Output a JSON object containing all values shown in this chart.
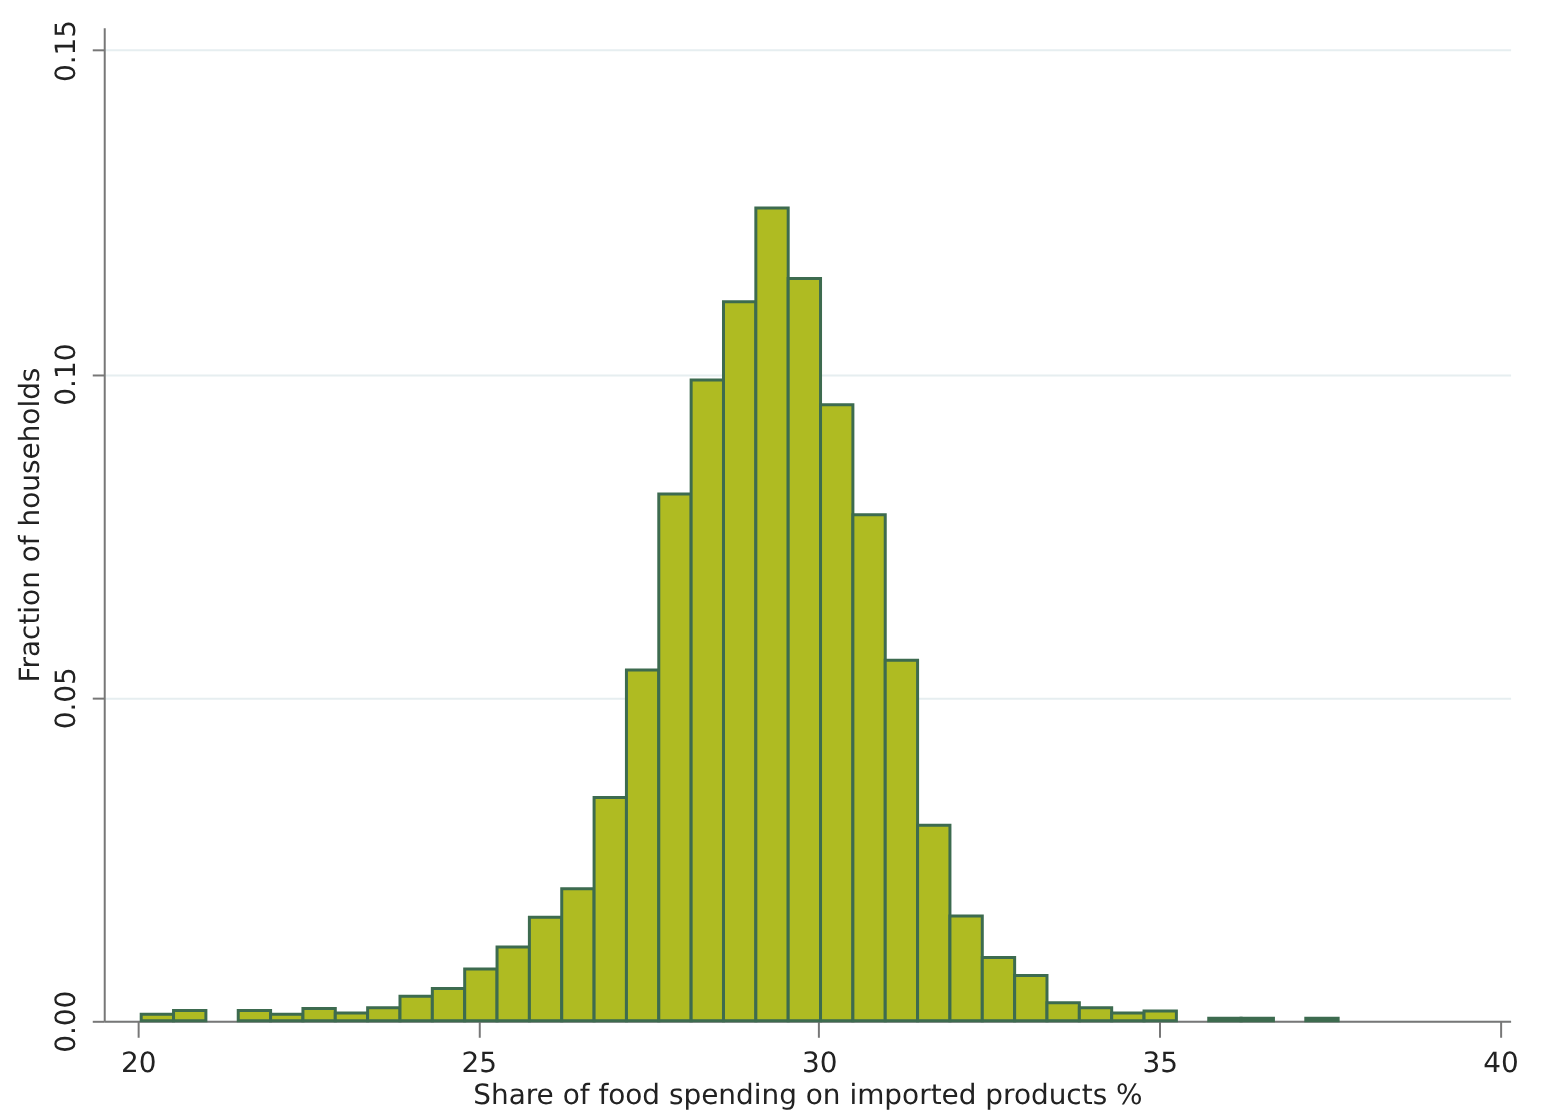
{
  "chart_data": {
    "type": "histogram",
    "xlabel": "Share of food spending on imported products %",
    "ylabel": "Fraction of households",
    "bins": [
      20.05,
      20.525,
      21.0,
      21.475,
      21.95,
      22.425,
      22.9,
      23.375,
      23.85,
      24.325,
      24.8,
      25.275,
      25.75,
      26.225,
      26.7,
      27.175,
      27.65,
      28.125,
      28.6,
      29.075,
      29.55,
      30.025,
      30.5,
      30.975,
      31.45,
      31.925,
      32.4,
      32.875,
      33.35,
      33.825,
      34.3,
      34.775,
      35.25,
      35.725,
      36.2,
      36.675,
      37.15,
      37.625
    ],
    "values": [
      0.001,
      0.0016,
      null,
      0.0016,
      0.001,
      0.0019,
      0.0012,
      0.002,
      0.0038,
      0.005,
      0.008,
      0.0114,
      0.016,
      0.0204,
      0.0345,
      0.0542,
      0.0814,
      0.099,
      0.1111,
      0.1256,
      0.1147,
      0.0952,
      0.0782,
      0.0557,
      0.0302,
      0.0162,
      0.0098,
      0.007,
      0.0028,
      0.002,
      0.0012,
      0.0015,
      null,
      0.0004,
      0.0004,
      null,
      0.0004
    ],
    "color": "#afbb22",
    "xlim": [
      19.5,
      40.15
    ],
    "ylim": [
      0,
      0.1535
    ],
    "xticks": [
      20,
      25,
      30,
      35,
      40
    ],
    "yticks": [
      {
        "value": 0,
        "label": "0.00"
      },
      {
        "value": 0.05,
        "label": "0.05"
      },
      {
        "value": 0.1,
        "label": "0.10"
      },
      {
        "value": 0.15,
        "label": "0.15"
      }
    ],
    "grid": "y"
  }
}
